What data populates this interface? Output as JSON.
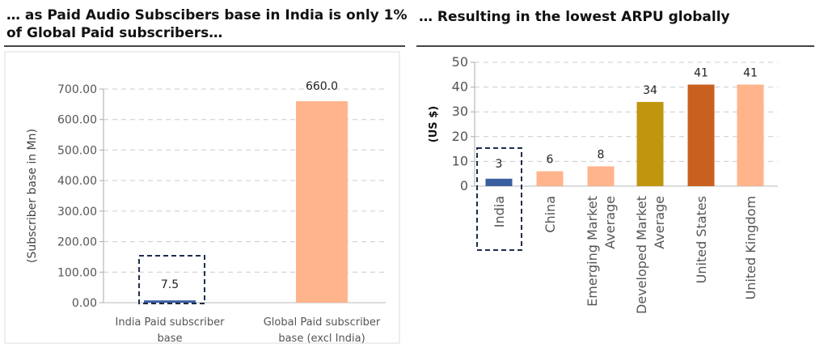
{
  "left_title": "… as Paid Audio Subscibers base in India is only 1% of Global Paid subscribers…",
  "right_title": "… Resulting in the lowest ARPU globally",
  "colors": {
    "india": "#3a5fa0",
    "peach": "#ffb48c",
    "gold": "#c1960f",
    "orange": "#c8611f",
    "highlight_box": "#1f2d4d"
  },
  "chart_data": [
    {
      "type": "bar",
      "title": "",
      "ylabel": "(Subscriber base in Mn)",
      "xlabel": "",
      "ylim": [
        0,
        700
      ],
      "yticks": [
        "0.00",
        "100.00",
        "200.00",
        "300.00",
        "400.00",
        "500.00",
        "600.00",
        "700.00"
      ],
      "ytick_values": [
        0,
        100,
        200,
        300,
        400,
        500,
        600,
        700
      ],
      "categories": [
        [
          "India Paid subscriber",
          "base"
        ],
        [
          "Global Paid subscriber",
          "base (excl India)"
        ]
      ],
      "values": [
        7.5,
        660.0
      ],
      "labels": [
        "7.5",
        "660.0"
      ],
      "bar_colors": [
        "india",
        "peach"
      ],
      "grid": true,
      "highlight": "India Paid subscriber base"
    },
    {
      "type": "bar",
      "title": "",
      "ylabel": "(US $)",
      "xlabel": "",
      "ylim": [
        0,
        50
      ],
      "yticks": [
        "0",
        "10",
        "20",
        "30",
        "40",
        "50"
      ],
      "ytick_values": [
        0,
        10,
        20,
        30,
        40,
        50
      ],
      "categories": [
        [
          "India"
        ],
        [
          "China"
        ],
        [
          "Emerging Market",
          "Average"
        ],
        [
          "Developed Market",
          "Average"
        ],
        [
          "United States"
        ],
        [
          "United Kingdom"
        ]
      ],
      "values": [
        3,
        6,
        8,
        34,
        41,
        41
      ],
      "labels": [
        "3",
        "6",
        "8",
        "34",
        "41",
        "41"
      ],
      "bar_colors": [
        "india",
        "peach",
        "peach",
        "gold",
        "orange",
        "peach"
      ],
      "grid": true,
      "highlight": "India"
    }
  ]
}
